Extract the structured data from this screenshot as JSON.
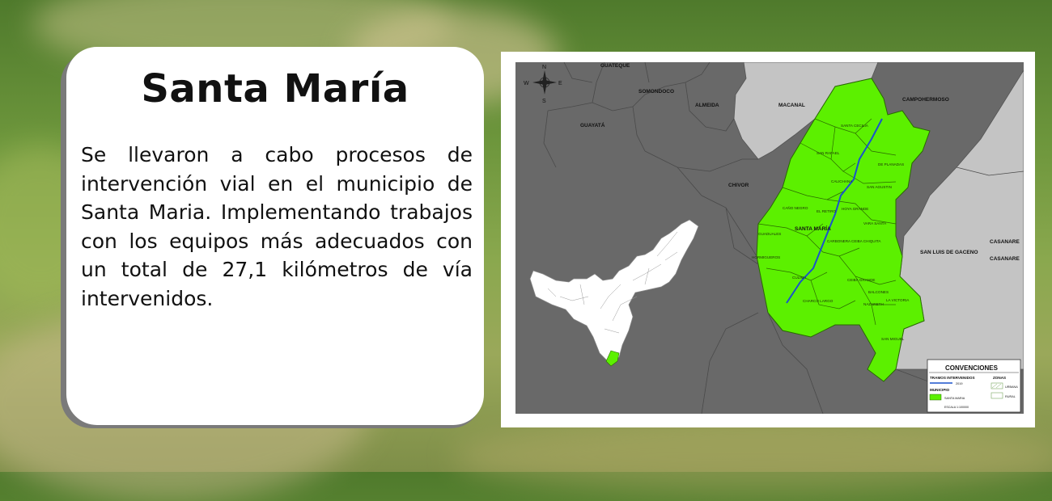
{
  "card": {
    "title": "Santa María",
    "body": "Se llevaron a cabo procesos de intervención vial en el municipio de Santa Maria. Implementando trabajos con los equipos más adecuados con un total de 27,1 kilómetros de vía intervenidos."
  },
  "map": {
    "compass": {
      "n": "N",
      "s": "S",
      "e": "E",
      "w": "W"
    },
    "municipalities": {
      "guateque": "GUATEQUE",
      "somondoco": "SOMONDOCO",
      "guayata": "GUAYATÁ",
      "almeida": "ALMEIDA",
      "macanal": "MACANAL",
      "campohermoso": "CAMPOHERMOSO",
      "chivor": "CHIVOR",
      "santa_maria": "SANTA MARÍA",
      "san_luis": "SAN LUIS DE GACENO",
      "casanare_1": "CASANARE",
      "casanare_2": "CASANARE"
    },
    "veredas": {
      "santa_cecilia": "SANTA CECILIA",
      "san_rafael": "SAN RAFAEL",
      "planadas": "DE PLANADAS",
      "caldiana": "CALICHANA",
      "san_agustin": "SAN AGUSTIN",
      "cano_negro": "CAÑO NEGRO",
      "el_retiro": "EL RETIRO",
      "hoya_grande": "HOYA GRANDE",
      "vara_santa": "VARA SANTA",
      "guaduales": "GUADUALES",
      "carbonera": "CARBONERA",
      "ceiba_chiquita": "CEIBA CHIQUITA",
      "hormigueros": "HORMIGUEROS",
      "culima": "CULIMA",
      "ceiba_grande": "CEIBA GRANDE",
      "balcones": "BALCONES",
      "charco_largo": "CHARCO LARGO",
      "la_victoria": "LA VICTORIA",
      "nazaret": "NAZARETH",
      "san_miguel": "SAN MIGUEL"
    },
    "legend": {
      "title": "CONVENCIONES",
      "tramos": "TRAMOS INTERVENIDOS",
      "tramos_year": "2019",
      "zonas": "ZONAS",
      "municipio": "MUNICIPIO",
      "santa_maria": "SANTA MARIA",
      "urbana": "URBANA",
      "rural": "RURAL",
      "escala": "ESCALA 1:100000"
    },
    "colors": {
      "highlight": "#5cf000",
      "dark_region": "#696969",
      "light_region": "#c4c4c4",
      "road": "#1a52cc"
    }
  }
}
